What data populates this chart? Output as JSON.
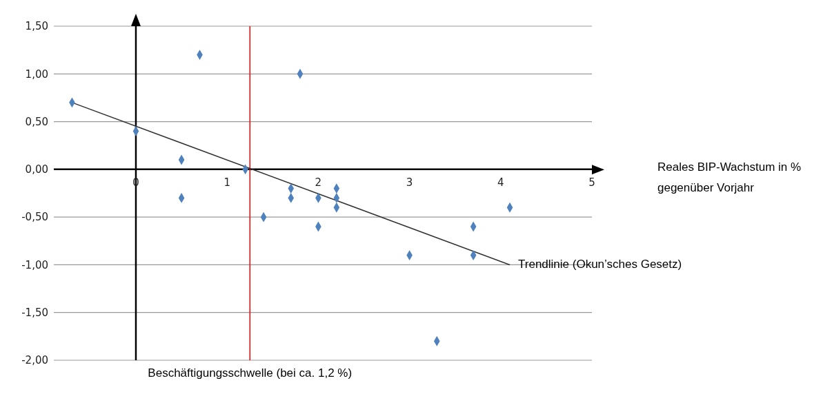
{
  "chart_data": {
    "type": "scatter",
    "annotations": [
      "Reales BIP-Wachstum in % gegenüber Vorjahr"
    ],
    "grid": "y",
    "xlim": [
      -0.9,
      5
    ],
    "xticks": [
      0,
      1,
      2,
      3,
      4,
      5
    ],
    "ylim": [
      -2,
      1.5
    ],
    "yticks": [
      {
        "value": -2,
        "label": "-2,00"
      },
      {
        "value": -1.5,
        "label": "-1,50"
      },
      {
        "value": -1,
        "label": "-1,00"
      },
      {
        "value": -0.5,
        "label": "-0,50"
      },
      {
        "value": 0,
        "label": "0,00"
      },
      {
        "value": 0.5,
        "label": "0,50"
      },
      {
        "value": 1,
        "label": "1,00"
      },
      {
        "value": 1.5,
        "label": "1,50"
      }
    ],
    "series": [
      {
        "marker": "diamond",
        "color": "#4f81bd",
        "x": [
          -0.7,
          0,
          0.5,
          0.5,
          0.7,
          1.2,
          1.4,
          1.7,
          1.7,
          1.8,
          2,
          2,
          2.2,
          2.2,
          2.2,
          3,
          3.3,
          3.7,
          3.7,
          4.1
        ],
        "values": [
          0.7,
          0.4,
          0.1,
          -0.3,
          1.2,
          0,
          -0.5,
          -0.2,
          -0.3,
          1.0,
          -0.3,
          -0.6,
          -0.2,
          -0.3,
          -0.4,
          -0.9,
          -1.8,
          -0.6,
          -0.9,
          -0.4
        ]
      },
      {
        "type": "line",
        "name": "Trendlinie (Okun’sches Gesetz)",
        "color": "#333333",
        "x": [
          -0.7,
          4.1
        ],
        "values": [
          0.7,
          -1.0
        ]
      }
    ],
    "ref_lines": [
      {
        "axis": "x",
        "value": 1.25,
        "label": "Beschäftigungsschwelle (bei ca. 1,2 %)",
        "color": "#ff0000"
      }
    ]
  }
}
